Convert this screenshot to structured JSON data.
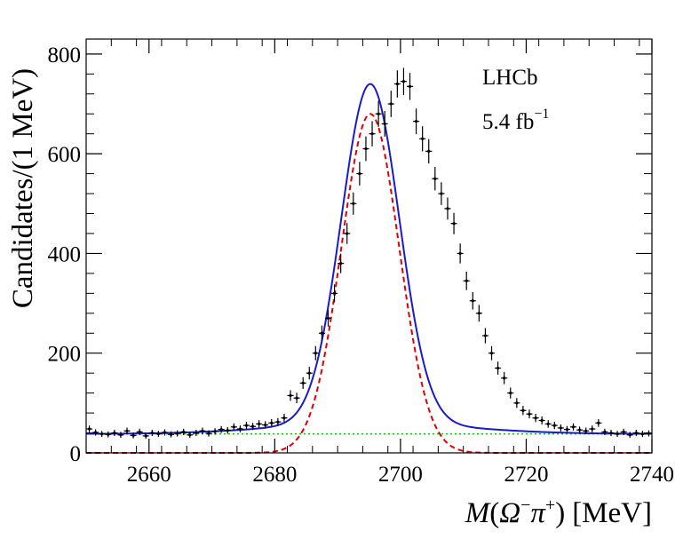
{
  "chart_data": {
    "type": "scatter",
    "title": "",
    "xlabel": "M(Ω⁻π⁺) [MeV]",
    "xlabel_parts": {
      "m": "M",
      "open": "(",
      "omega": "Ω",
      "omega_sup": "−",
      "pi": "π",
      "pi_sup": "+",
      "close": ")",
      "unit": "[MeV]"
    },
    "ylabel": "Candidates/(1 MeV)",
    "xlim": [
      2650,
      2740
    ],
    "ylim": [
      0,
      830
    ],
    "xticks": [
      2660,
      2680,
      2700,
      2720,
      2740
    ],
    "yticks": [
      0,
      200,
      400,
      600,
      800
    ],
    "annotations": [
      {
        "text": "LHCb"
      },
      {
        "text": "5.4 fb",
        "sup": "−1"
      }
    ],
    "series": [
      {
        "name": "Data",
        "style": "points-with-errors",
        "color": "#000000",
        "x": [
          2650.5,
          2651.5,
          2652.5,
          2653.5,
          2654.5,
          2655.5,
          2656.5,
          2657.5,
          2658.5,
          2659.5,
          2660.5,
          2661.5,
          2662.5,
          2663.5,
          2664.5,
          2665.5,
          2666.5,
          2667.5,
          2668.5,
          2669.5,
          2670.5,
          2671.5,
          2672.5,
          2673.5,
          2674.5,
          2675.5,
          2676.5,
          2677.5,
          2678.5,
          2679.5,
          2680.5,
          2681.5,
          2682.5,
          2683.5,
          2684.5,
          2685.5,
          2686.5,
          2687.5,
          2688.5,
          2689.5,
          2690.5,
          2691.5,
          2692.5,
          2693.5,
          2694.5,
          2695.5,
          2696.5,
          2697.5,
          2698.5,
          2699.5,
          2700.5,
          2701.5,
          2702.5,
          2703.5,
          2704.5,
          2705.5,
          2706.5,
          2707.5,
          2708.5,
          2709.5,
          2710.5,
          2711.5,
          2712.5,
          2713.5,
          2714.5,
          2715.5,
          2716.5,
          2717.5,
          2718.5,
          2719.5,
          2720.5,
          2721.5,
          2722.5,
          2723.5,
          2724.5,
          2725.5,
          2726.5,
          2727.5,
          2728.5,
          2729.5,
          2730.5,
          2731.5,
          2732.5,
          2733.5,
          2734.5,
          2735.5,
          2736.5,
          2737.5,
          2738.5,
          2739.5
        ],
        "y": [
          48,
          41,
          38,
          37,
          40,
          36,
          44,
          35,
          42,
          34,
          40,
          38,
          41,
          37,
          39,
          42,
          36,
          40,
          44,
          39,
          43,
          47,
          45,
          52,
          48,
          55,
          53,
          58,
          56,
          60,
          62,
          70,
          115,
          110,
          140,
          160,
          200,
          240,
          270,
          320,
          380,
          440,
          500,
          560,
          610,
          640,
          680,
          660,
          700,
          740,
          745,
          735,
          665,
          630,
          605,
          550,
          520,
          490,
          460,
          400,
          345,
          305,
          280,
          235,
          200,
          170,
          150,
          120,
          100,
          85,
          78,
          70,
          65,
          58,
          55,
          50,
          47,
          52,
          46,
          44,
          48,
          60,
          42,
          40,
          38,
          42,
          36,
          40,
          38,
          39
        ],
        "yerr_note": "sqrt(N)"
      },
      {
        "name": "Total fit",
        "style": "solid",
        "color": "#1a1acc"
      },
      {
        "name": "Signal",
        "style": "dashed",
        "color": "#e00000"
      },
      {
        "name": "Background",
        "style": "dotted",
        "color": "#00cc00"
      }
    ],
    "fit_params": {
      "mean": 2695.2,
      "sigma": 4.6,
      "signal_peak": 680,
      "bkg_a": 38,
      "bkg_b": 0.0
    }
  }
}
